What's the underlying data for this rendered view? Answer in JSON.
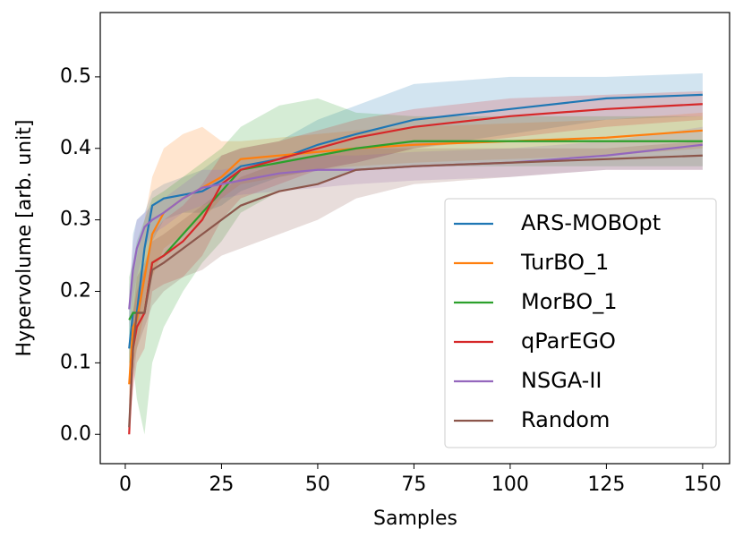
{
  "chart_data": {
    "type": "line",
    "xlabel": "Samples",
    "ylabel": "Hypervolume [arb. unit]",
    "x": [
      1,
      2,
      3,
      5,
      7,
      10,
      15,
      20,
      25,
      30,
      40,
      50,
      60,
      75,
      100,
      125,
      150
    ],
    "series": [
      {
        "name": "ARS-MOBOpt",
        "color": "#1f77b4",
        "values": [
          0.12,
          0.17,
          0.17,
          0.26,
          0.32,
          0.33,
          0.335,
          0.34,
          0.355,
          0.375,
          0.385,
          0.405,
          0.42,
          0.44,
          0.455,
          0.47,
          0.475
        ],
        "lower": [
          0.07,
          0.13,
          0.14,
          0.21,
          0.27,
          0.3,
          0.31,
          0.31,
          0.32,
          0.34,
          0.36,
          0.37,
          0.38,
          0.4,
          0.42,
          0.44,
          0.445
        ],
        "upper": [
          0.17,
          0.28,
          0.3,
          0.31,
          0.34,
          0.35,
          0.36,
          0.37,
          0.39,
          0.4,
          0.41,
          0.44,
          0.46,
          0.49,
          0.5,
          0.5,
          0.505
        ]
      },
      {
        "name": "TurBO_1",
        "color": "#ff7f0e",
        "values": [
          0.07,
          0.15,
          0.16,
          0.22,
          0.28,
          0.31,
          0.33,
          0.345,
          0.36,
          0.385,
          0.39,
          0.395,
          0.4,
          0.405,
          0.41,
          0.415,
          0.425
        ],
        "lower": [
          0.0,
          0.1,
          0.12,
          0.17,
          0.22,
          0.26,
          0.28,
          0.3,
          0.33,
          0.35,
          0.36,
          0.37,
          0.375,
          0.38,
          0.385,
          0.39,
          0.4
        ],
        "upper": [
          0.12,
          0.22,
          0.25,
          0.3,
          0.36,
          0.4,
          0.42,
          0.43,
          0.41,
          0.41,
          0.415,
          0.42,
          0.425,
          0.43,
          0.435,
          0.44,
          0.45
        ]
      },
      {
        "name": "MorBO_1",
        "color": "#2ca02c",
        "values": [
          0.16,
          0.17,
          0.17,
          0.17,
          0.24,
          0.25,
          0.28,
          0.31,
          0.34,
          0.37,
          0.38,
          0.39,
          0.4,
          0.41,
          0.41,
          0.41,
          0.41
        ],
        "lower": [
          0.1,
          0.1,
          0.05,
          0.0,
          0.1,
          0.15,
          0.2,
          0.24,
          0.27,
          0.31,
          0.34,
          0.35,
          0.37,
          0.375,
          0.375,
          0.375,
          0.375
        ],
        "upper": [
          0.22,
          0.24,
          0.27,
          0.3,
          0.33,
          0.34,
          0.36,
          0.38,
          0.4,
          0.43,
          0.46,
          0.47,
          0.45,
          0.445,
          0.445,
          0.445,
          0.445
        ]
      },
      {
        "name": "qParEGO",
        "color": "#d62728",
        "values": [
          0.0,
          0.12,
          0.15,
          0.17,
          0.24,
          0.25,
          0.27,
          0.3,
          0.35,
          0.37,
          0.385,
          0.4,
          0.415,
          0.43,
          0.445,
          0.455,
          0.462
        ],
        "lower": [
          0.0,
          0.06,
          0.1,
          0.12,
          0.2,
          0.21,
          0.22,
          0.25,
          0.3,
          0.33,
          0.35,
          0.37,
          0.38,
          0.4,
          0.415,
          0.43,
          0.44
        ],
        "upper": [
          0.04,
          0.17,
          0.2,
          0.23,
          0.28,
          0.3,
          0.32,
          0.35,
          0.39,
          0.4,
          0.41,
          0.425,
          0.44,
          0.455,
          0.47,
          0.475,
          0.48
        ]
      },
      {
        "name": "NSGA-II",
        "color": "#9467bd",
        "values": [
          0.175,
          0.23,
          0.26,
          0.29,
          0.3,
          0.31,
          0.33,
          0.345,
          0.35,
          0.355,
          0.365,
          0.37,
          0.37,
          0.375,
          0.38,
          0.39,
          0.405
        ],
        "lower": [
          0.15,
          0.19,
          0.22,
          0.26,
          0.28,
          0.29,
          0.31,
          0.32,
          0.33,
          0.335,
          0.34,
          0.345,
          0.35,
          0.355,
          0.36,
          0.37,
          0.37
        ],
        "upper": [
          0.2,
          0.27,
          0.3,
          0.31,
          0.32,
          0.33,
          0.35,
          0.37,
          0.37,
          0.375,
          0.385,
          0.39,
          0.39,
          0.395,
          0.4,
          0.41,
          0.43
        ]
      },
      {
        "name": "Random",
        "color": "#8c564b",
        "values": [
          0.01,
          0.12,
          0.17,
          0.17,
          0.23,
          0.24,
          0.26,
          0.28,
          0.3,
          0.32,
          0.34,
          0.35,
          0.37,
          0.375,
          0.38,
          0.385,
          0.39
        ],
        "lower": [
          0.0,
          0.07,
          0.12,
          0.15,
          0.18,
          0.2,
          0.22,
          0.23,
          0.25,
          0.26,
          0.28,
          0.3,
          0.33,
          0.35,
          0.36,
          0.37,
          0.37
        ],
        "upper": [
          0.05,
          0.17,
          0.22,
          0.24,
          0.27,
          0.28,
          0.3,
          0.32,
          0.34,
          0.36,
          0.38,
          0.39,
          0.4,
          0.4,
          0.4,
          0.4,
          0.41
        ]
      }
    ],
    "xlim": [
      -6.5,
      157
    ],
    "xticks": [
      0,
      25,
      50,
      75,
      100,
      125,
      150
    ],
    "ylim": [
      -0.041,
      0.59
    ],
    "yticks": [
      {
        "value": 0,
        "label": "0.0"
      },
      0.1,
      0.2,
      0.3,
      0.4,
      0.5
    ],
    "legend": "lower right",
    "grid": false
  }
}
